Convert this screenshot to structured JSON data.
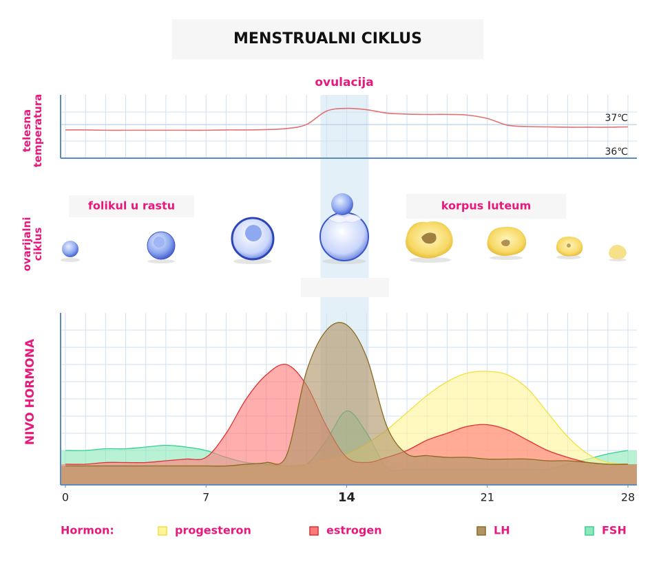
{
  "title": "MENSTRUALNI CIKLUS",
  "ovarian_cycle": {
    "label": "ovarijalni ciklus",
    "phases": [
      "folikul u rastu",
      "korpus luteum"
    ]
  },
  "chart_data": [
    {
      "type": "line",
      "y_label": "telesna temperatura",
      "annotation": "ovulacija",
      "x": [
        0,
        1,
        2,
        3,
        4,
        5,
        6,
        7,
        8,
        9,
        10,
        11,
        12,
        13,
        14,
        15,
        16,
        17,
        18,
        19,
        20,
        21,
        22,
        23,
        24,
        25,
        26,
        27,
        28
      ],
      "xlim": [
        0,
        28
      ],
      "ylim": [
        36,
        37.88
      ],
      "yticks": [
        {
          "value": 36,
          "label": "36℃"
        },
        {
          "value": 37,
          "label": "37℃"
        }
      ],
      "grid": true,
      "series": [
        {
          "color": "#e07070",
          "values": [
            36.84,
            36.84,
            36.83,
            36.83,
            36.83,
            36.83,
            36.83,
            36.83,
            36.84,
            36.84,
            36.85,
            36.88,
            37.0,
            37.4,
            37.48,
            37.44,
            37.34,
            37.31,
            37.3,
            37.3,
            37.28,
            37.18,
            36.98,
            36.94,
            36.93,
            36.92,
            36.92,
            36.92,
            36.93
          ]
        }
      ]
    },
    {
      "type": "area",
      "y_label": "NIVO HORMONA",
      "legend_title": "Hormon:",
      "x": [
        0,
        1,
        2,
        3,
        4,
        5,
        6,
        7,
        8,
        9,
        10,
        11,
        12,
        13,
        14,
        15,
        16,
        17,
        18,
        19,
        20,
        21,
        22,
        23,
        24,
        25,
        26,
        27,
        28
      ],
      "xlim": [
        0,
        28
      ],
      "xticks": [
        0,
        7,
        14,
        21,
        28
      ],
      "ylim": [
        0,
        100
      ],
      "yticks": [
        10,
        20,
        30,
        40,
        50,
        60,
        70,
        80,
        90
      ],
      "highlight_x": [
        12.7,
        15.1
      ],
      "grid": true,
      "series": [
        {
          "name": "progesteron",
          "color": "#f0e040",
          "fill": "#fff59a",
          "values": [
            11,
            11,
            11,
            11,
            11,
            11,
            11,
            11,
            11,
            11,
            11,
            11,
            12,
            15,
            18,
            24,
            32,
            42,
            52,
            60,
            65,
            66,
            64,
            56,
            42,
            28,
            18,
            13,
            12
          ]
        },
        {
          "name": "estrogen",
          "color": "#e03030",
          "fill": "#ff7b7b",
          "values": [
            12,
            12,
            13,
            13,
            13,
            14,
            15,
            16,
            30,
            50,
            64,
            70,
            58,
            34,
            16,
            13,
            16,
            20,
            26,
            30,
            34,
            35,
            32,
            26,
            20,
            16,
            13,
            12,
            12
          ]
        },
        {
          "name": "LH",
          "color": "#8a6a20",
          "fill": "#b09468",
          "values": [
            11,
            11,
            11,
            11,
            11,
            11,
            11,
            11,
            11,
            12,
            13,
            17,
            66,
            90,
            93,
            74,
            34,
            18,
            17,
            16,
            16,
            15,
            15,
            15,
            14,
            14,
            13,
            12,
            12
          ]
        },
        {
          "name": "FSH",
          "color": "#30d090",
          "fill": "#8ee8bc",
          "values": [
            20,
            20,
            21,
            21,
            22,
            23,
            22,
            20,
            16,
            13,
            12,
            11,
            12,
            26,
            43,
            30,
            10,
            9,
            9,
            9,
            9,
            9,
            9,
            9,
            9,
            12,
            15,
            18,
            20
          ]
        }
      ]
    }
  ]
}
